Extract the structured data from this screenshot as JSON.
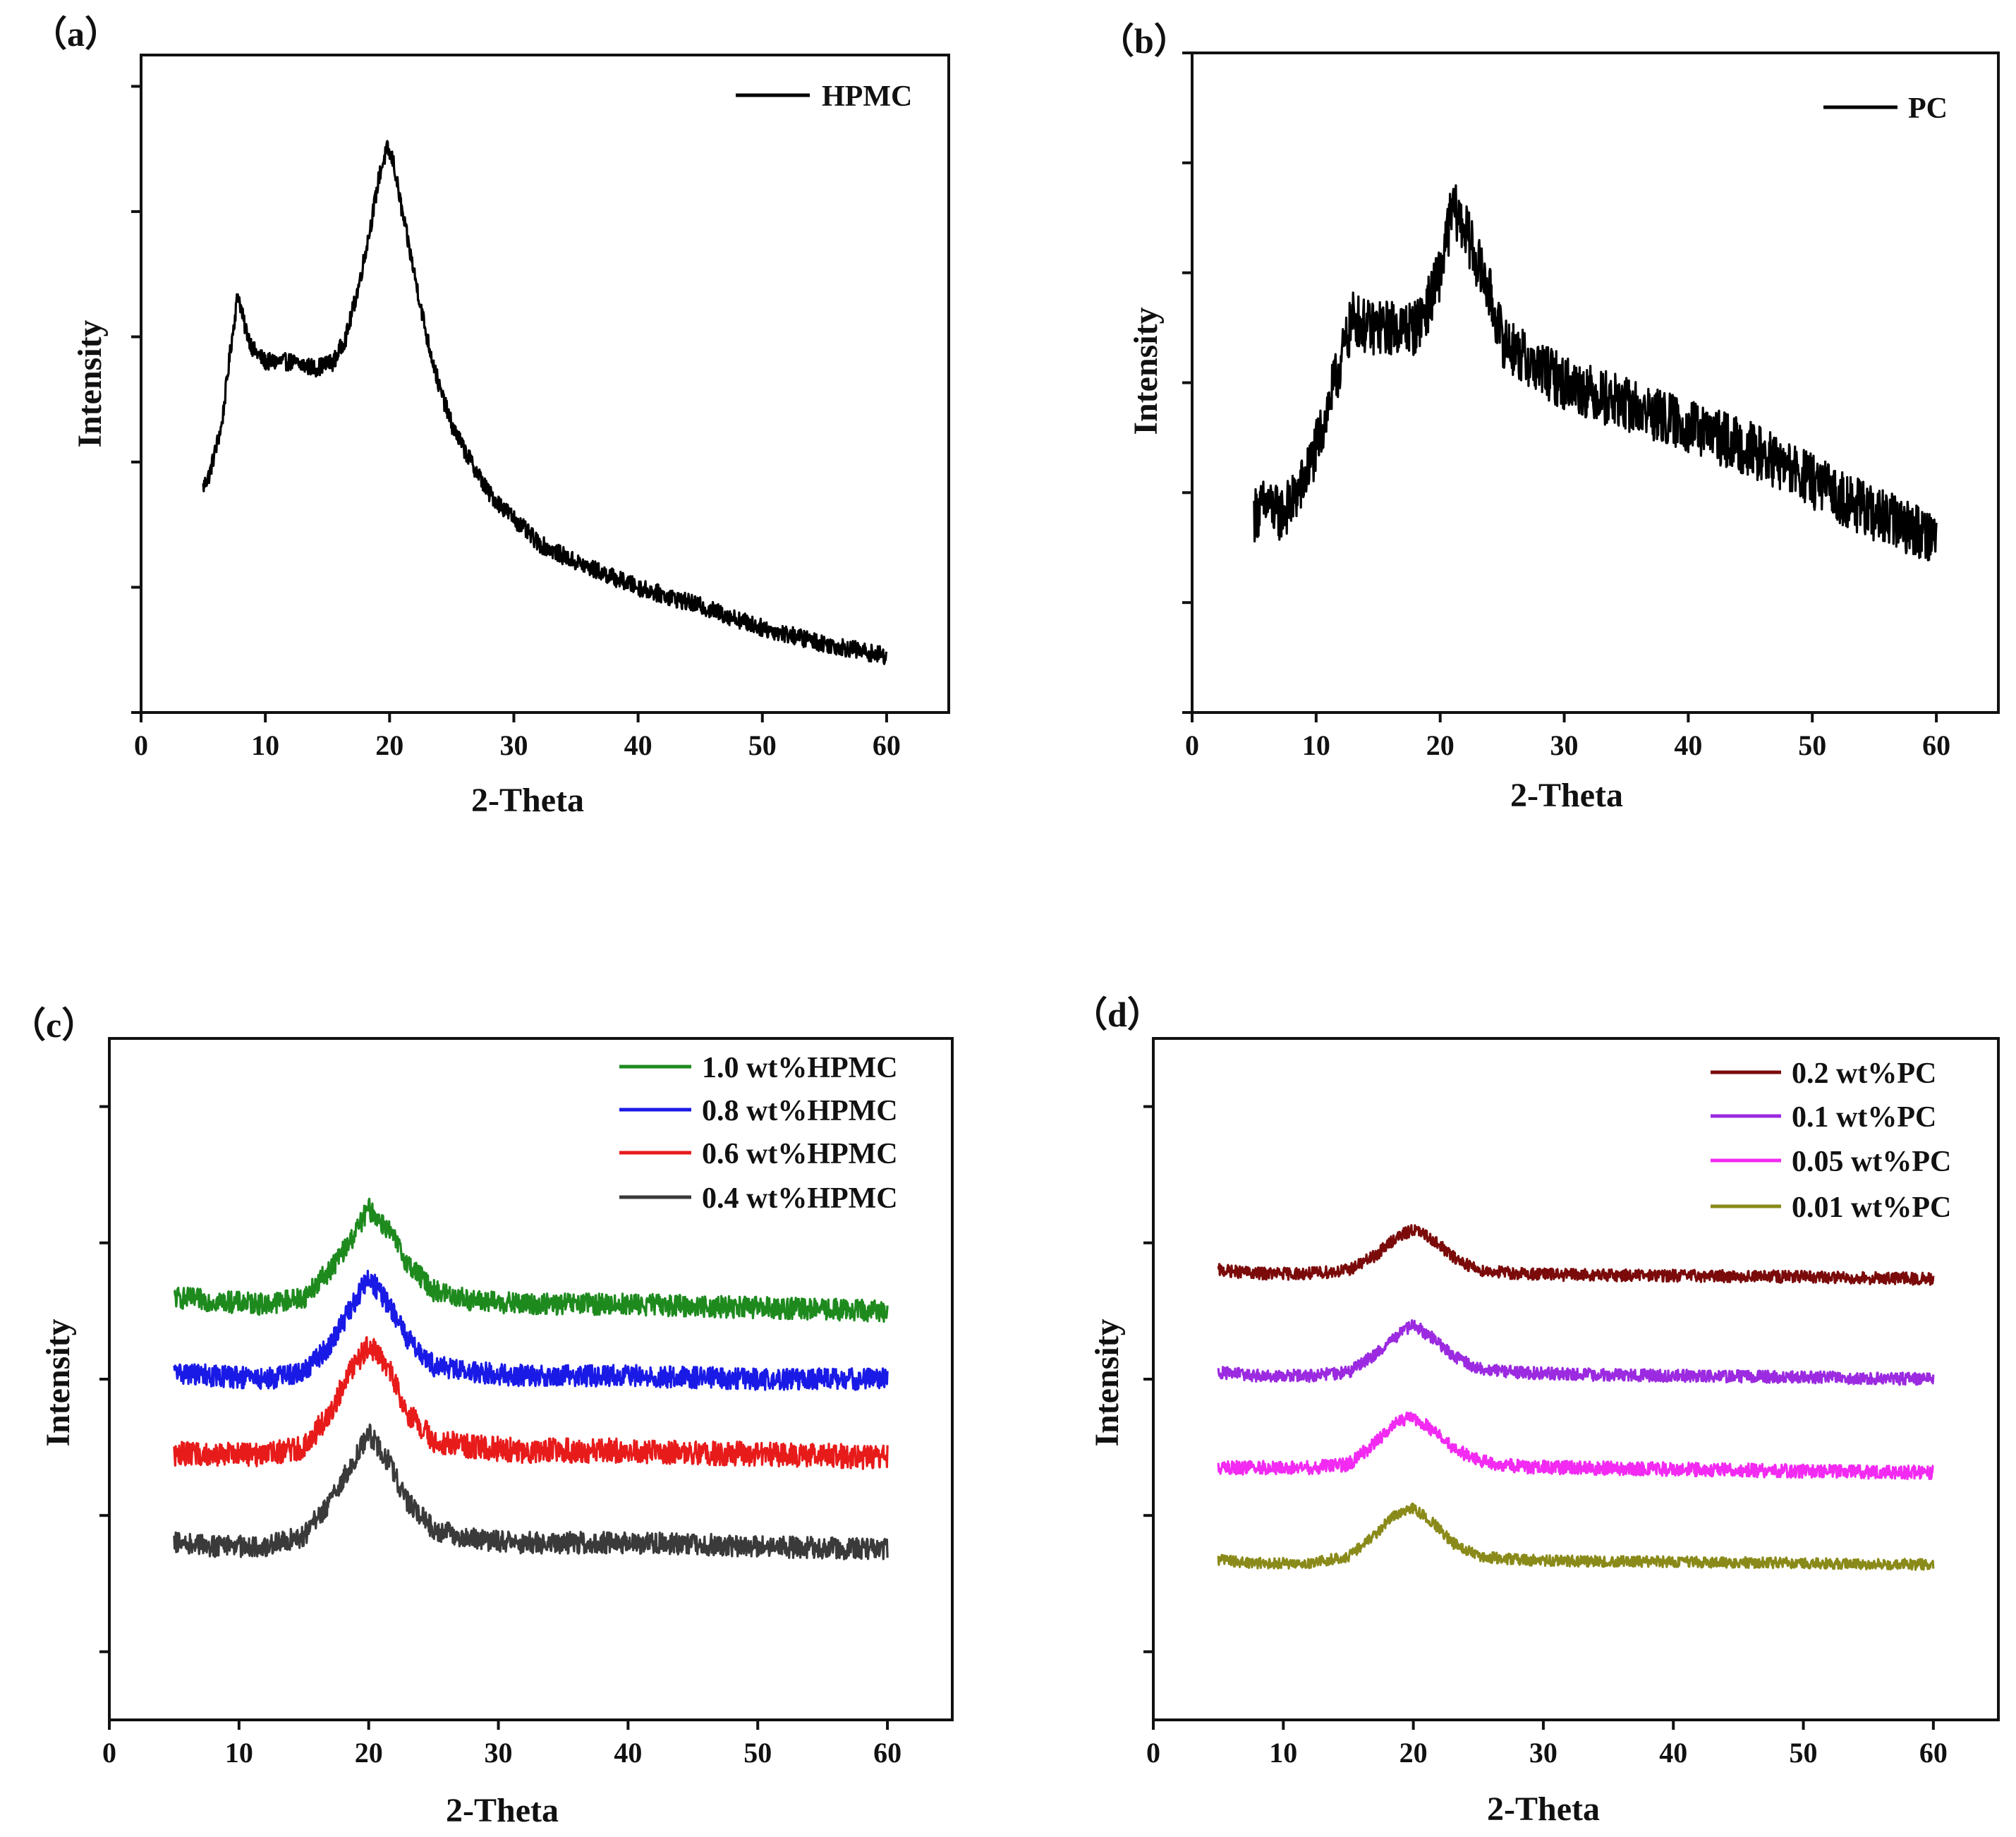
{
  "chart_data": [
    {
      "panel_label": "（a）",
      "type": "line",
      "xlabel": "2-Theta",
      "ylabel": "Intensity",
      "xlim": [
        0,
        65
      ],
      "ylim": [
        0,
        105
      ],
      "x_ticks": [
        0,
        10,
        20,
        30,
        40,
        50,
        60
      ],
      "x_tick_labels": [
        "0",
        "10",
        "20",
        "30",
        "40",
        "50",
        "60"
      ],
      "y_ticks": [
        0,
        20,
        40,
        60,
        80,
        100
      ],
      "legend_position": "top-right",
      "series": [
        {
          "name": "HPMC",
          "color": "#000000",
          "noise": 1.4,
          "x": [
            5,
            5.5,
            6.5,
            7.2,
            7.8,
            8.3,
            9,
            10,
            12,
            14,
            15.5,
            16.5,
            17.5,
            18.5,
            19.2,
            19.8,
            20.3,
            21,
            22,
            23,
            24,
            25,
            26,
            28,
            30,
            32,
            35,
            40,
            45,
            50,
            55,
            60
          ],
          "values": [
            36,
            38,
            46,
            58,
            67,
            62,
            58,
            56,
            56,
            55,
            56,
            60,
            68,
            78,
            86,
            90,
            88,
            80,
            70,
            60,
            52,
            46,
            42,
            35,
            31,
            27,
            24,
            20,
            17,
            13.5,
            11,
            9
          ]
        }
      ]
    },
    {
      "panel_label": "（b）",
      "type": "line",
      "xlabel": "2-Theta",
      "ylabel": "Intensity",
      "xlim": [
        0,
        65
      ],
      "ylim": [
        0,
        120
      ],
      "x_ticks": [
        0,
        10,
        20,
        30,
        40,
        50,
        60
      ],
      "x_tick_labels": [
        "0",
        "10",
        "20",
        "30",
        "40",
        "50",
        "60"
      ],
      "y_ticks": [
        0,
        20,
        40,
        60,
        80,
        100,
        120
      ],
      "legend_position": "top-right",
      "series": [
        {
          "name": "PC",
          "color": "#000000",
          "noise": 5,
          "x": [
            5,
            6,
            7,
            8,
            9,
            10,
            11,
            12,
            13,
            14,
            16,
            18,
            19,
            20,
            21,
            22,
            23,
            24,
            25,
            27,
            30,
            35,
            40,
            45,
            50,
            55,
            60
          ],
          "values": [
            36,
            38,
            36,
            38,
            42,
            48,
            56,
            64,
            72,
            70,
            70,
            70,
            74,
            80,
            92,
            88,
            82,
            76,
            68,
            64,
            60,
            56,
            52,
            48,
            42,
            36,
            32
          ]
        }
      ]
    },
    {
      "panel_label": "（c）",
      "type": "line",
      "xlabel": "2-Theta",
      "ylabel": "Intensity",
      "xlim": [
        0,
        65
      ],
      "ylim": [
        0,
        100
      ],
      "x_ticks": [
        0,
        10,
        20,
        30,
        40,
        50,
        60
      ],
      "x_tick_labels": [
        "0",
        "10",
        "20",
        "30",
        "40",
        "50",
        "60"
      ],
      "y_ticks": [
        10,
        30,
        50,
        70,
        90
      ],
      "legend_position": "top-right",
      "series": [
        {
          "name": "1.0 wt%HPMC",
          "color": "#1e8a1e",
          "noise": 1.6,
          "x": [
            5,
            8,
            12,
            15,
            17,
            18.5,
            20,
            21.5,
            23,
            25,
            28,
            32,
            40,
            50,
            60
          ],
          "values": [
            62,
            61.5,
            61,
            62,
            66,
            70,
            75,
            72,
            67,
            63,
            61.5,
            61,
            61,
            60.5,
            60
          ]
        },
        {
          "name": "0.8 wt%HPMC",
          "color": "#1a1ae6",
          "noise": 1.6,
          "x": [
            5,
            8,
            12,
            15,
            17,
            18.5,
            20,
            21.5,
            23,
            25,
            28,
            32,
            40,
            50,
            60
          ],
          "values": [
            51,
            50.5,
            50,
            51,
            55,
            60,
            65,
            61,
            56,
            52,
            51,
            50.5,
            50.5,
            50,
            50
          ]
        },
        {
          "name": "0.6 wt%HPMC",
          "color": "#e81b1b",
          "noise": 1.8,
          "x": [
            5,
            8,
            12,
            15,
            17,
            18.5,
            20,
            21.5,
            23,
            25,
            28,
            32,
            40,
            50,
            60
          ],
          "values": [
            39,
            39,
            39,
            40,
            45,
            51,
            55,
            52,
            45,
            41,
            40,
            39.5,
            39.5,
            39,
            38.5
          ]
        },
        {
          "name": "0.4 wt%HPMC",
          "color": "#3a3a3a",
          "noise": 1.6,
          "x": [
            5,
            8,
            12,
            15,
            17,
            18.5,
            20,
            21.5,
            23,
            25,
            28,
            32,
            40,
            50,
            60
          ],
          "values": [
            26,
            25.5,
            25.5,
            27,
            32,
            37,
            42,
            38,
            32,
            28,
            26.5,
            26,
            26,
            25.5,
            25
          ]
        }
      ]
    },
    {
      "panel_label": "（d）",
      "type": "line",
      "xlabel": "2-Theta",
      "ylabel": "Intensity",
      "xlim": [
        0,
        65
      ],
      "ylim": [
        0,
        100
      ],
      "x_ticks": [
        0,
        10,
        20,
        30,
        40,
        50,
        60
      ],
      "x_tick_labels": [
        "0",
        "10",
        "20",
        "30",
        "40",
        "50",
        "60"
      ],
      "y_ticks": [
        10,
        30,
        50,
        70,
        90
      ],
      "legend_position": "top-right",
      "series": [
        {
          "name": "0.2 wt%PC",
          "color": "#7b0a0a",
          "noise": 0.9,
          "x": [
            5,
            8,
            12,
            15,
            17,
            18.5,
            20,
            21.5,
            23,
            25,
            28,
            32,
            40,
            50,
            60
          ],
          "values": [
            66,
            65.5,
            65.5,
            66,
            68,
            70.5,
            72,
            70.5,
            68,
            66,
            65.5,
            65.3,
            65.2,
            65,
            64.7
          ]
        },
        {
          "name": "0.1 wt%PC",
          "color": "#9b2ae0",
          "noise": 0.9,
          "x": [
            5,
            8,
            12,
            15,
            17,
            18.5,
            20,
            21.5,
            23,
            25,
            28,
            32,
            40,
            50,
            60
          ],
          "values": [
            51,
            50.5,
            50.5,
            51,
            53.5,
            56,
            58,
            56,
            53.5,
            51.5,
            51,
            50.7,
            50.5,
            50.3,
            50
          ]
        },
        {
          "name": "0.05 wt%PC",
          "color": "#f22af2",
          "noise": 1.0,
          "x": [
            5,
            8,
            12,
            15,
            17,
            18.5,
            20,
            21.5,
            23,
            25,
            28,
            32,
            40,
            50,
            60
          ],
          "values": [
            37,
            37,
            37,
            37.5,
            40.5,
            43.5,
            44.5,
            42.5,
            40,
            38,
            37.2,
            37,
            36.8,
            36.5,
            36.3
          ]
        },
        {
          "name": "0.01 wt%PC",
          "color": "#8a8a1a",
          "noise": 0.8,
          "x": [
            5,
            8,
            12,
            15,
            17,
            18.5,
            20,
            21.5,
            23,
            25,
            28,
            32,
            40,
            50,
            60
          ],
          "values": [
            23.5,
            23,
            23,
            24,
            27,
            30,
            31,
            29,
            26,
            24,
            23.5,
            23.3,
            23.2,
            23,
            22.8
          ]
        }
      ]
    }
  ]
}
